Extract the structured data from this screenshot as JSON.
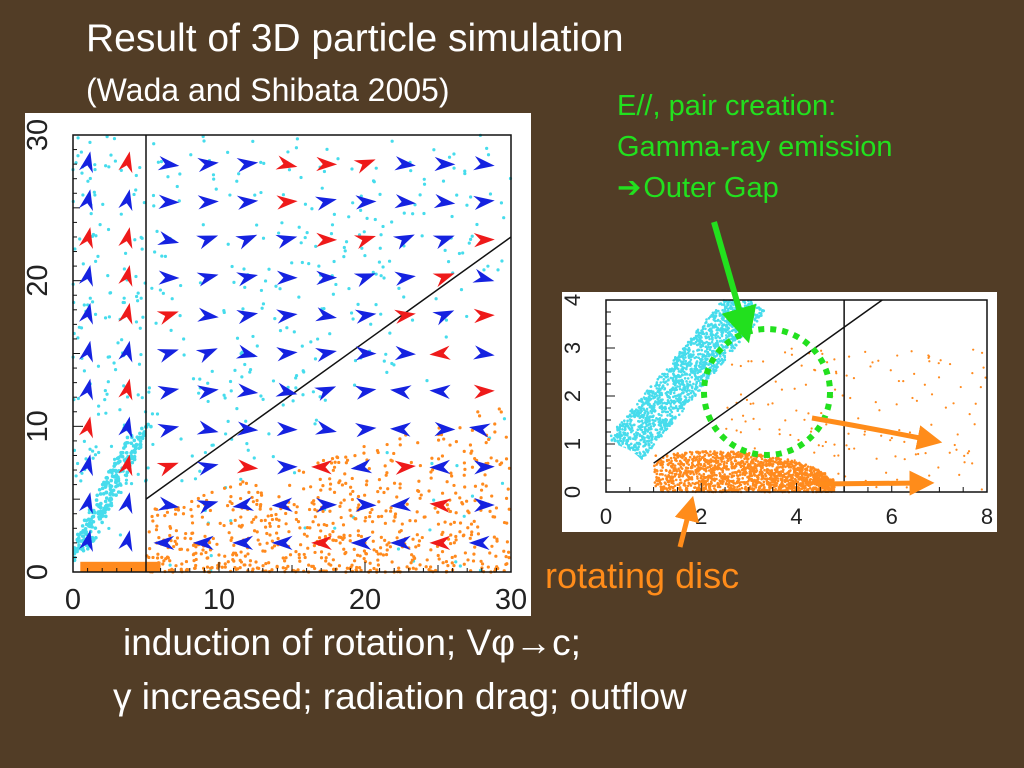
{
  "slide": {
    "title": "Result of 3D particle simulation",
    "subtitle": "(Wada and Shibata 2005)",
    "annotation_green": {
      "line1": "E//, pair creation:",
      "line2": "Gamma-ray emission",
      "line3_arrow": "➔",
      "line3_text": "Outer Gap"
    },
    "rotating_disc_label": "rotating disc",
    "bottom_line1": "induction of rotation; Vφ→c;",
    "bottom_line2": "γ increased; radiation drag; outflow"
  },
  "colors": {
    "background": "#523d26",
    "text": "#ffffff",
    "annotation_green": "#22e01e",
    "annotation_orange": "#ff8c1a",
    "particles_cyan": "#46dcec",
    "particles_orange": "#ff8a1e",
    "arrows_blue": "#1522e0",
    "arrows_red": "#ee1a1a"
  },
  "chart_data": [
    {
      "type": "scatter",
      "description_key": "left_panel",
      "xlim": [
        0,
        30
      ],
      "ylim": [
        0,
        30
      ],
      "xticks": [
        "0",
        "10",
        "20",
        "30"
      ],
      "yticks": [
        "0",
        "10",
        "20",
        "30"
      ],
      "xlabel": "",
      "ylabel": "",
      "title": "",
      "lines": [
        {
          "kind": "vertical",
          "x": 5
        },
        {
          "kind": "diagonal",
          "from": [
            5,
            5
          ],
          "to": [
            30,
            23
          ]
        }
      ],
      "series": [
        {
          "kind": "particles",
          "color": "cyan",
          "region": "upper and left jet"
        },
        {
          "kind": "particles",
          "color": "orange",
          "region": "equatorial disc"
        },
        {
          "kind": "vector_field",
          "color": "blue"
        },
        {
          "kind": "vector_field",
          "color": "red"
        }
      ]
    },
    {
      "type": "scatter",
      "description_key": "right_panel",
      "xlim": [
        0,
        8
      ],
      "ylim": [
        0,
        4
      ],
      "xticks": [
        "0",
        "2",
        "4",
        "6",
        "8"
      ],
      "yticks": [
        "0",
        "1",
        "2",
        "3",
        "4"
      ],
      "xlabel": "",
      "ylabel": "",
      "title": "",
      "lines": [
        {
          "kind": "vertical",
          "x": 5
        },
        {
          "kind": "diagonal",
          "from": [
            1,
            0.6
          ],
          "to": [
            5.8,
            4
          ]
        }
      ],
      "series": [
        {
          "kind": "particles",
          "color": "cyan",
          "region": "polar outflow"
        },
        {
          "kind": "particles",
          "color": "orange",
          "region": "rotating disc"
        }
      ]
    }
  ]
}
